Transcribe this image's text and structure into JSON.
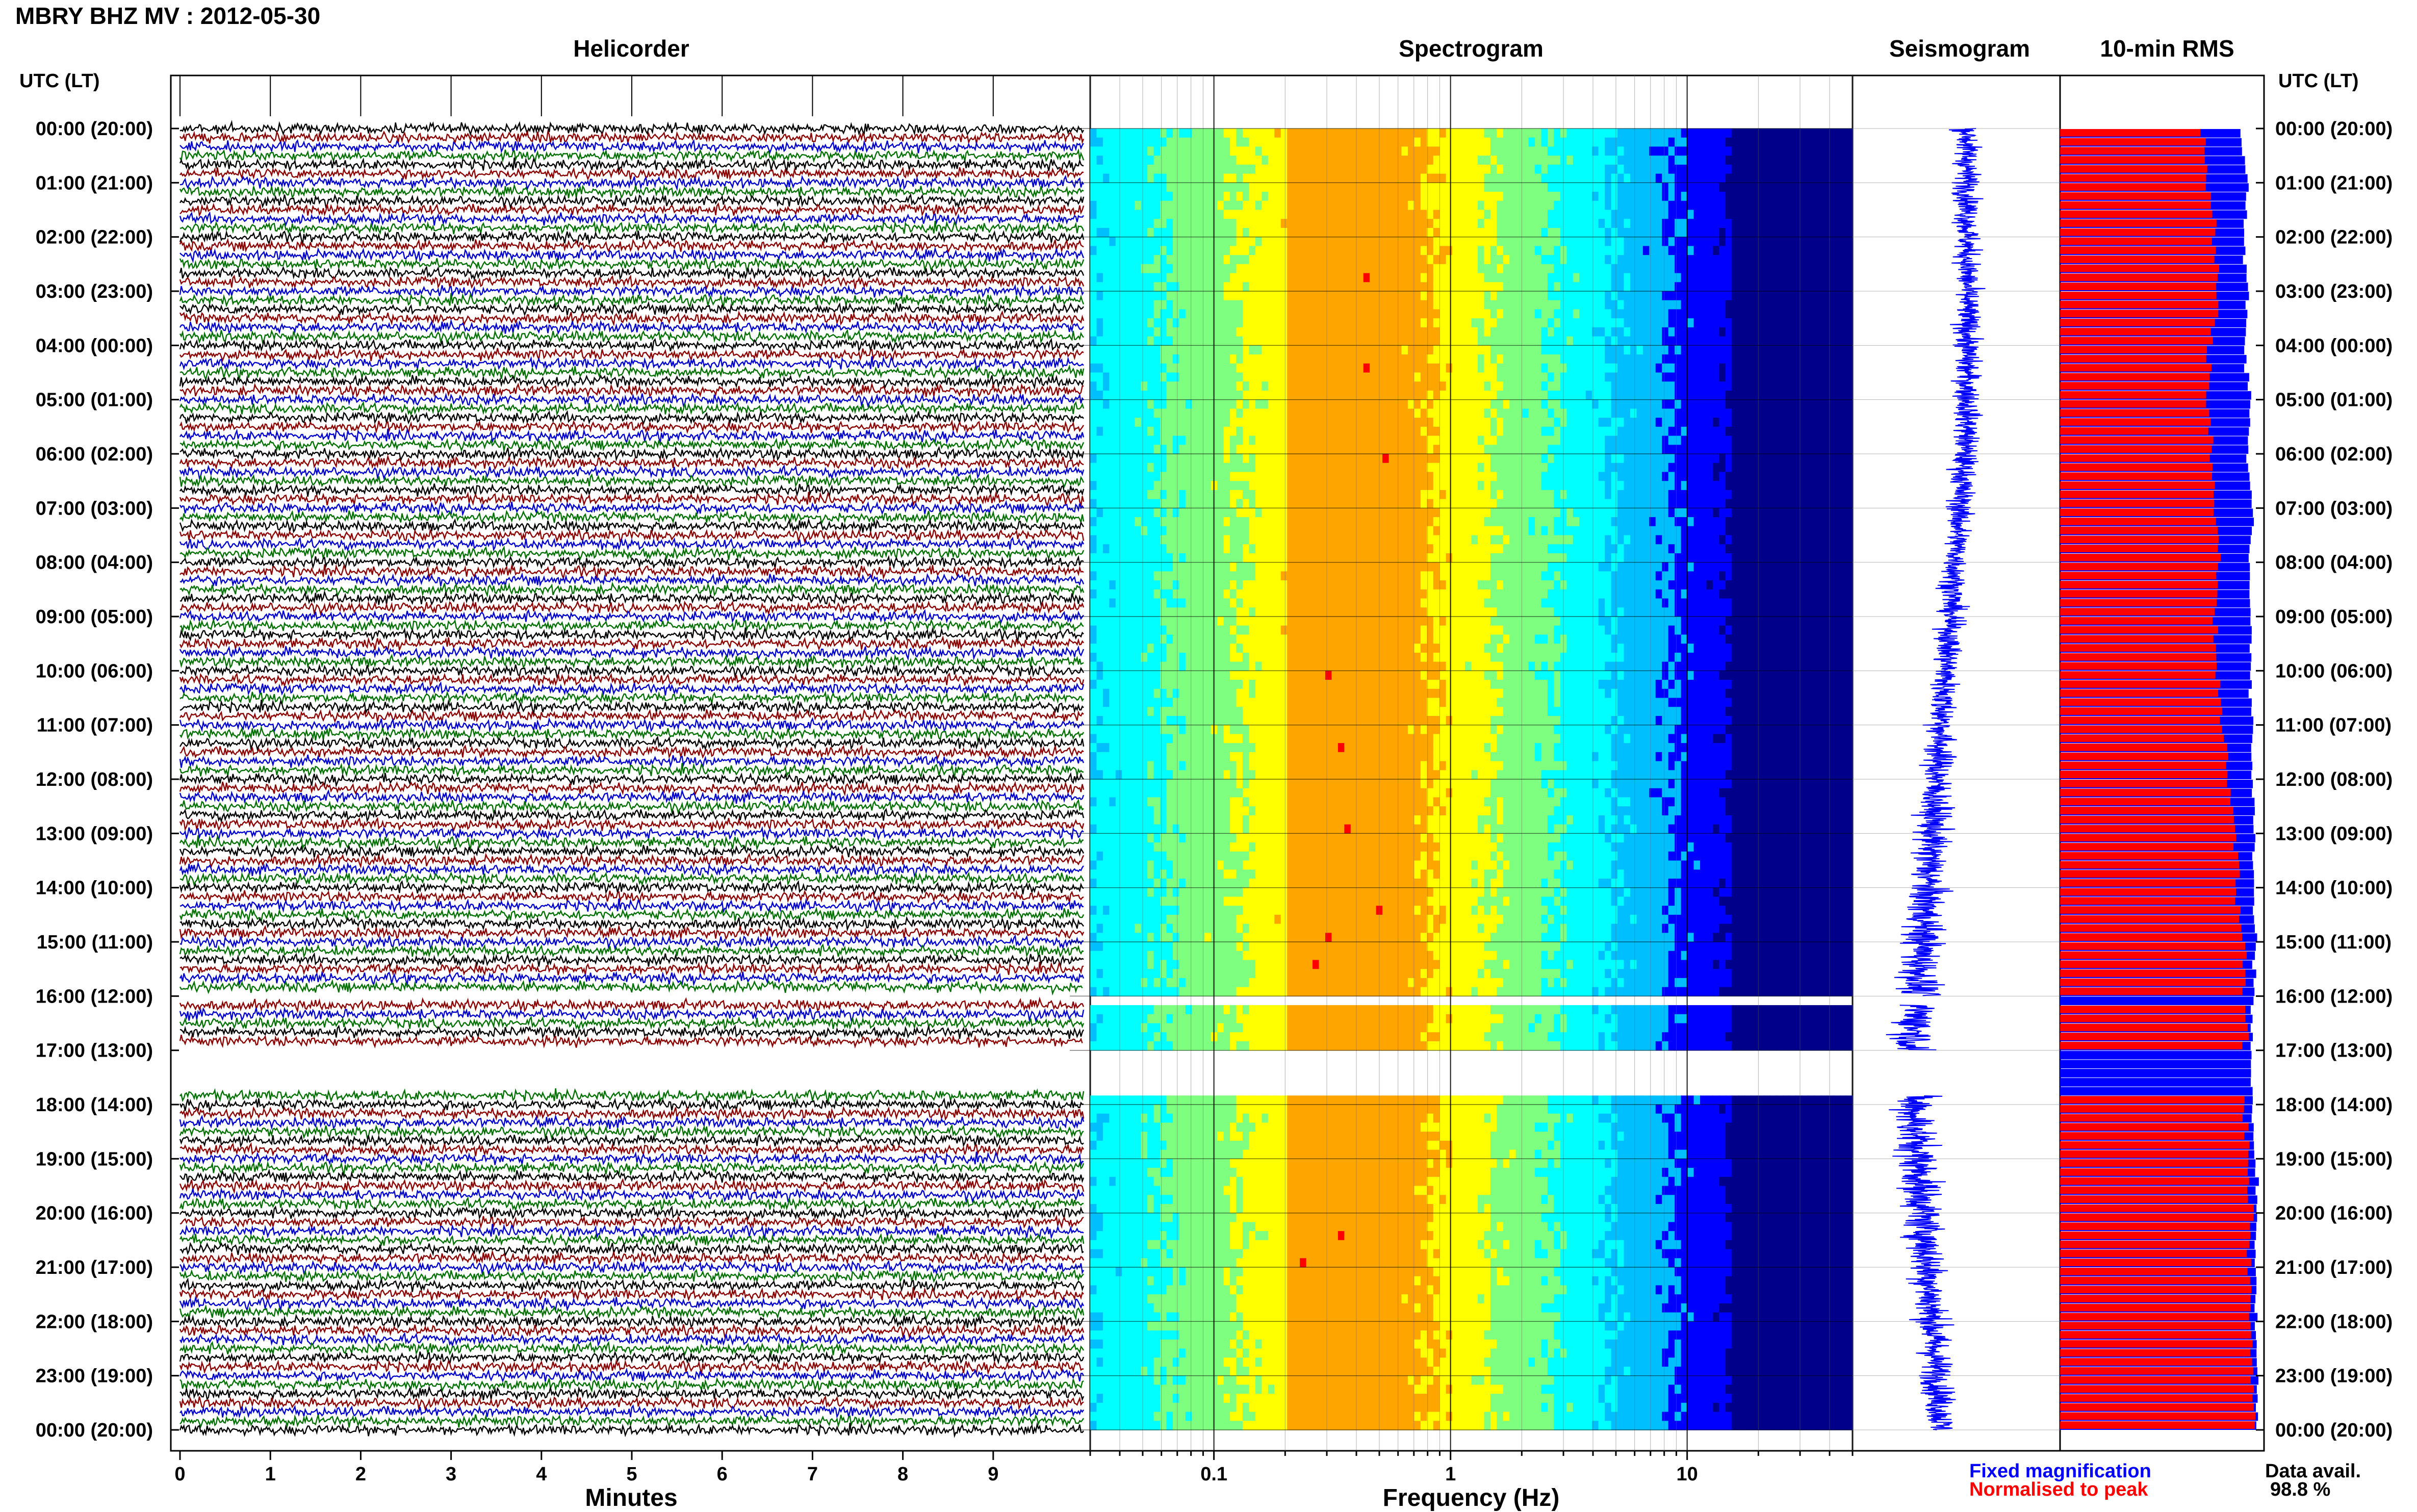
{
  "header": {
    "title": "MBRY BHZ MV : 2012-05-30",
    "time_axis_label_left": "UTC (LT)",
    "time_axis_label_right": "UTC (LT)"
  },
  "legend": {
    "fixed_magnification": "Fixed magnification",
    "normalised_to_peak": "Normalised to peak",
    "data_avail_label": "Data avail.",
    "data_avail_value": "98.8 %"
  },
  "colors": {
    "trace_cycle": [
      "#000000",
      "#8b0000",
      "#0000cd",
      "#007000"
    ],
    "seismogram": "#0000ff",
    "rms_fixed": "#0000ff",
    "rms_normalised": "#ff0000",
    "fixed_magnification_text": "#0000ff",
    "normalised_to_peak_text": "#ff0000"
  },
  "chart_data": [
    {
      "type": "line",
      "title": "Helicorder",
      "xlabel": "Minutes",
      "x_ticks": [
        "0",
        "1",
        "2",
        "3",
        "4",
        "5",
        "6",
        "7",
        "8",
        "9"
      ],
      "xlim": [
        0,
        10
      ],
      "y_tick_labels": [
        "00:00 (20:00)",
        "01:00 (21:00)",
        "02:00 (22:00)",
        "03:00 (23:00)",
        "04:00 (00:00)",
        "05:00 (01:00)",
        "06:00 (02:00)",
        "07:00 (03:00)",
        "08:00 (04:00)",
        "09:00 (05:00)",
        "10:00 (06:00)",
        "11:00 (07:00)",
        "12:00 (08:00)",
        "13:00 (09:00)",
        "14:00 (10:00)",
        "15:00 (11:00)",
        "16:00 (12:00)",
        "17:00 (13:00)",
        "18:00 (14:00)",
        "19:00 (15:00)",
        "20:00 (16:00)",
        "21:00 (17:00)",
        "22:00 (18:00)",
        "23:00 (19:00)",
        "00:00 (20:00)"
      ],
      "traces_per_hour": 6,
      "gaps_utc": [
        [
          "16:00",
          "16:10"
        ],
        [
          "17:00",
          "17:50"
        ]
      ]
    },
    {
      "type": "heatmap",
      "title": "Spectrogram",
      "xlabel": "Frequency (Hz)",
      "x_scale": "log",
      "xlim": [
        0.03,
        50
      ],
      "x_ticks": [
        "0.1",
        "1",
        "10"
      ],
      "peak_band_hz": [
        0.2,
        0.6
      ],
      "colormap": [
        "#00008b",
        "#0000ff",
        "#00bfff",
        "#00ffff",
        "#7fff7f",
        "#ffff00",
        "#ffa500",
        "#ff0000"
      ]
    },
    {
      "type": "line",
      "title": "Seismogram"
    },
    {
      "type": "bar",
      "title": "10-min RMS",
      "series": [
        {
          "name": "Fixed magnification",
          "values": [
            0.91,
            0.94,
            0.92,
            0.95,
            0.93,
            0.96,
            0.94,
            0.97,
            0.95,
            0.96,
            0.95,
            0.97,
            0.96,
            0.98,
            0.97,
            0.98,
            0.97,
            0.96,
            0.97,
            0.98,
            0.99,
            0.98,
            0.98,
            0.99,
            0.99
          ]
        },
        {
          "name": "Normalised to peak",
          "values": [
            0.72,
            0.75,
            0.78,
            0.8,
            0.75,
            0.74,
            0.76,
            0.78,
            0.8,
            0.77,
            0.79,
            0.82,
            0.85,
            0.88,
            0.89,
            0.92,
            0.93,
            0.94,
            0.93,
            0.95,
            0.96,
            0.95,
            0.96,
            0.97,
            0.98
          ]
        }
      ]
    }
  ]
}
